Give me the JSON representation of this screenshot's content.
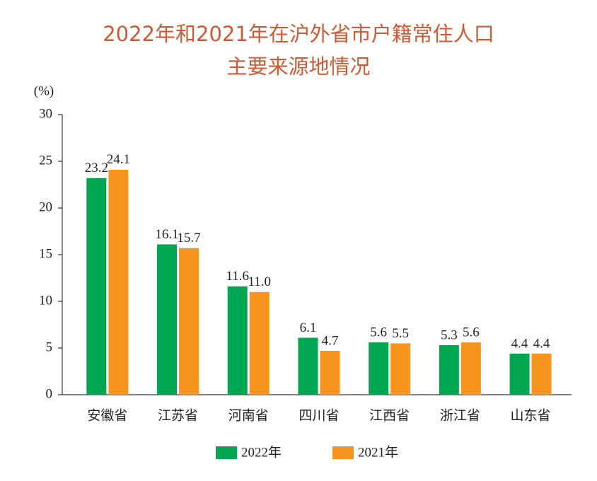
{
  "chart_data": {
    "type": "bar",
    "title": [
      "2022年和2021年在沪外省市户籍常住人口",
      "主要来源地情况"
    ],
    "y_label": "(%)",
    "categories": [
      "安徽省",
      "江苏省",
      "河南省",
      "四川省",
      "江西省",
      "浙江省",
      "山东省"
    ],
    "series": [
      {
        "name": "2022年",
        "color": "#00a650",
        "values": [
          23.2,
          16.1,
          11.6,
          6.1,
          5.6,
          5.3,
          4.4
        ],
        "value_labels": [
          "23.2",
          "16.1",
          "11.6",
          "6.1",
          "5.6",
          "5.3",
          "4.4"
        ]
      },
      {
        "name": "2021年",
        "color": "#f7941d",
        "values": [
          24.1,
          15.7,
          11.0,
          4.7,
          5.5,
          5.6,
          4.4
        ],
        "value_labels": [
          "24.1",
          "15.7",
          "11.0",
          "4.7",
          "5.5",
          "5.6",
          "4.4"
        ]
      }
    ],
    "ylim": [
      0,
      30
    ],
    "yticks": [
      0,
      5,
      10,
      15,
      20,
      25,
      30
    ],
    "legend": "bottom"
  }
}
